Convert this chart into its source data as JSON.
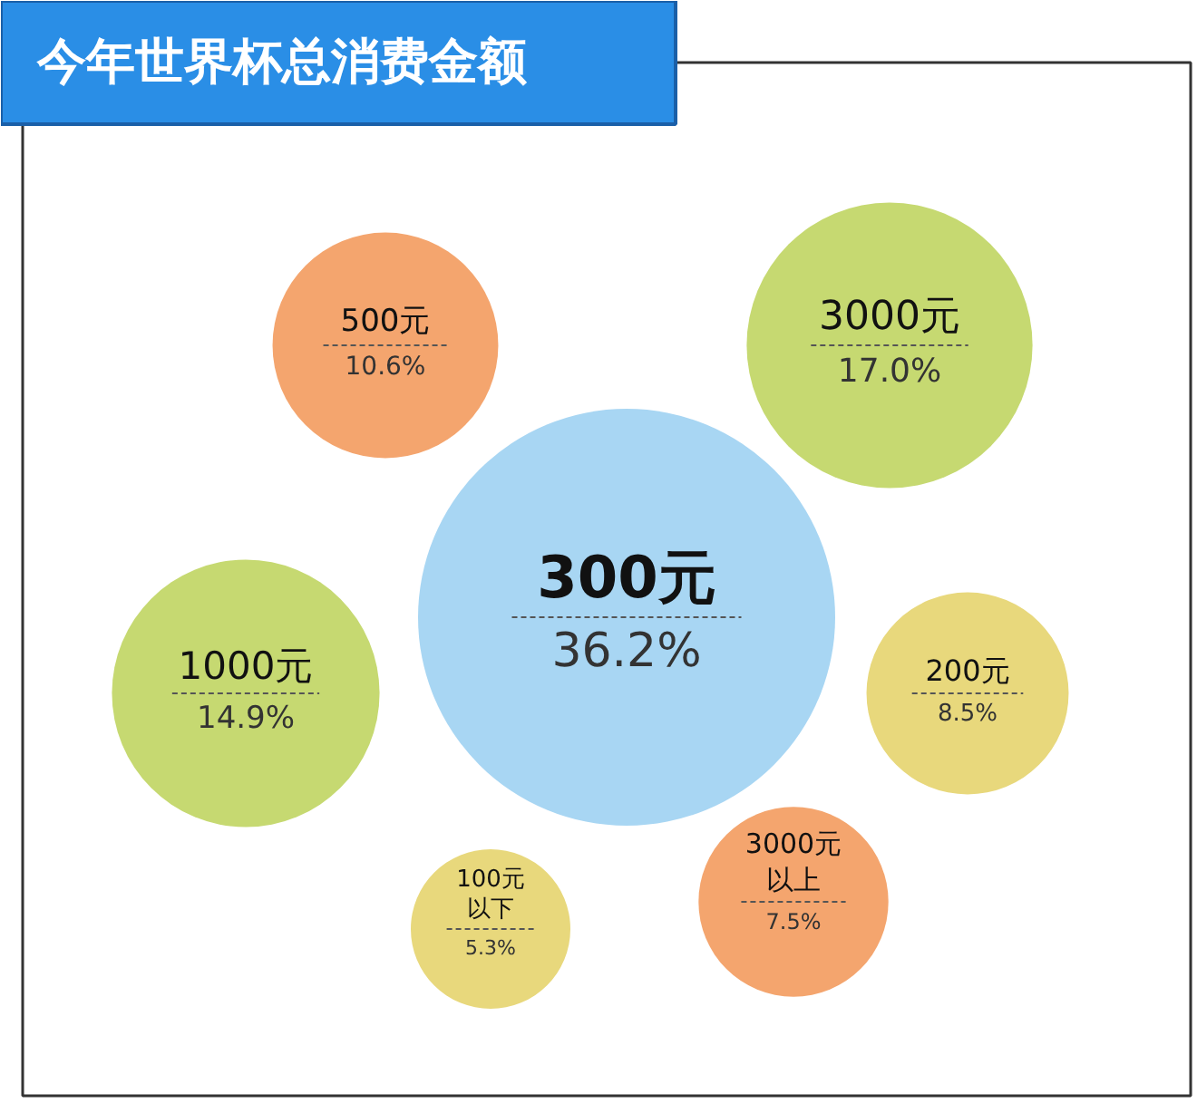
{
  "chart_data": {
    "type": "other",
    "title": "今年世界杯总消费金额",
    "categories": [
      "500元",
      "3000元",
      "1000元",
      "300元",
      "200元",
      "3000元以上",
      "100元以下"
    ],
    "values": [
      10.6,
      17.0,
      14.9,
      36.2,
      8.5,
      7.5,
      5.3
    ],
    "value_labels": [
      "10.6%",
      "17.0%",
      "14.9%",
      "36.2%",
      "8.5%",
      "7.5%",
      "5.3%"
    ],
    "colors": [
      "#f4a56e",
      "#c6d971",
      "#c6d971",
      "#a8d6f3",
      "#e8d87c",
      "#f4a56e",
      "#e8d87c"
    ]
  }
}
